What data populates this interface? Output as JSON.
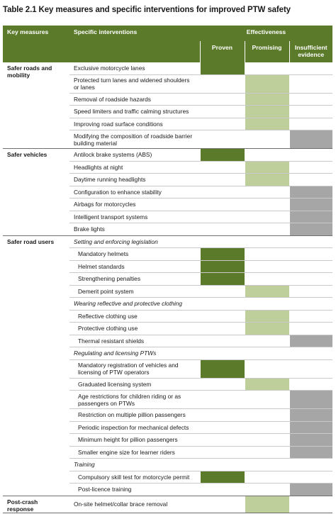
{
  "title": "Table 2.1 Key measures and specific interventions for improved PTW safety",
  "header": {
    "key_measures": "Key measures",
    "specific_interventions": "Specific interventions",
    "effectiveness": "Effectiveness",
    "proven": "Proven",
    "promising": "Promising",
    "insufficient": "Insufficient evidence"
  },
  "colors": {
    "header_bg": "#5b7a2a",
    "proven": "#5b7a2a",
    "promising": "#bfcf9b",
    "insufficient_evidence": "#a6a6a6"
  },
  "groups": [
    {
      "key": "Safer roads and mobility",
      "rows": [
        {
          "text": "Exclusive motorcycle lanes",
          "rating": "proven"
        },
        {
          "text": "Protected turn lanes and widened shoulders or lanes",
          "rating": "promising"
        },
        {
          "text": "Removal of roadside hazards",
          "rating": "promising"
        },
        {
          "text": "Speed limiters and traffic calming structures",
          "rating": "promising"
        },
        {
          "text": "Improving road surface conditions",
          "rating": "promising"
        },
        {
          "text": "Modifying the composition of roadside barrier building material",
          "rating": "insufficient"
        }
      ]
    },
    {
      "key": "Safer vehicles",
      "rows": [
        {
          "text": "Antilock brake systems (ABS)",
          "rating": "proven"
        },
        {
          "text": "Headlights at night",
          "rating": "promising"
        },
        {
          "text": "Daytime running headlights",
          "rating": "promising"
        },
        {
          "text": "Configuration to enhance stability",
          "rating": "insufficient"
        },
        {
          "text": "Airbags for motorcycles",
          "rating": "insufficient"
        },
        {
          "text": "Intelligent transport systems",
          "rating": "insufficient"
        },
        {
          "text": "Brake lights",
          "rating": "insufficient"
        }
      ]
    },
    {
      "key": "Safer road users",
      "rows": [
        {
          "text": "Setting and enforcing legislation",
          "rating": "heading"
        },
        {
          "text": "Mandatory helmets",
          "rating": "proven"
        },
        {
          "text": "Helmet standards",
          "rating": "proven"
        },
        {
          "text": "Strengthening penalties",
          "rating": "proven"
        },
        {
          "text": "Demerit point system",
          "rating": "promising"
        },
        {
          "text": "Wearing reflective and protective clothing",
          "rating": "heading"
        },
        {
          "text": "Reflective clothing use",
          "rating": "promising"
        },
        {
          "text": "Protective clothing use",
          "rating": "promising"
        },
        {
          "text": "Thermal resistant shields",
          "rating": "insufficient"
        },
        {
          "text": "Regulating and licensing PTWs",
          "rating": "heading"
        },
        {
          "text": "Mandatory registration of vehicles and licensing of PTW operators",
          "rating": "proven"
        },
        {
          "text": "Graduated licensing system",
          "rating": "promising"
        },
        {
          "text": "Age restrictions for children riding or as passengers on PTWs",
          "rating": "insufficient"
        },
        {
          "text": "Restriction on multiple pillion passengers",
          "rating": "insufficient"
        },
        {
          "text": "Periodic inspection for mechanical defects",
          "rating": "insufficient"
        },
        {
          "text": "Minimum height for pillion passengers",
          "rating": "insufficient"
        },
        {
          "text": "Smaller engine size for learner riders",
          "rating": "insufficient"
        },
        {
          "text": "Training",
          "rating": "heading"
        },
        {
          "text": "Compulsory skill test for motorcycle permit",
          "rating": "proven"
        },
        {
          "text": "Post-licence training",
          "rating": "insufficient"
        }
      ]
    },
    {
      "key": "Post-crash response",
      "rows": [
        {
          "text": "On-site helmet/collar brace removal",
          "rating": "promising"
        }
      ]
    }
  ]
}
